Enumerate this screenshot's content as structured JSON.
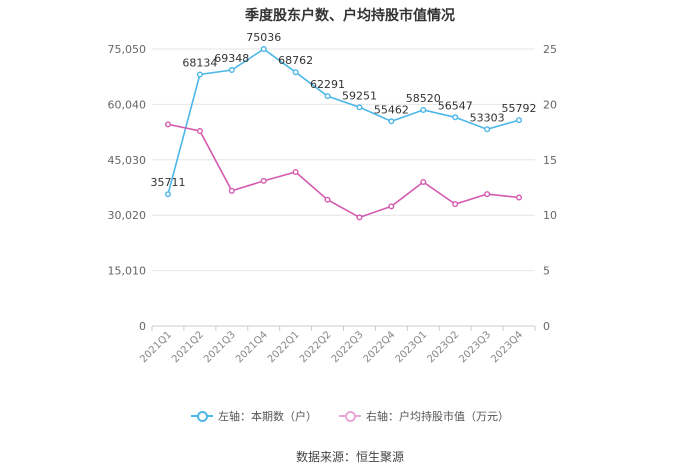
{
  "chart_data": {
    "type": "line",
    "title": "季度股东户数、户均持股市值情况",
    "categories": [
      "2021Q1",
      "2021Q2",
      "2021Q3",
      "2021Q4",
      "2022Q1",
      "2022Q2",
      "2022Q3",
      "2022Q4",
      "2023Q1",
      "2023Q2",
      "2023Q3",
      "2023Q4"
    ],
    "left_axis": {
      "ylim": [
        0,
        75050
      ],
      "ticks": [
        0,
        15010,
        30020,
        45030,
        60040,
        75050
      ],
      "tick_labels": [
        "0",
        "15,010",
        "30,020",
        "45,030",
        "60,040",
        "75,050"
      ]
    },
    "right_axis": {
      "ylim": [
        0,
        25
      ],
      "ticks": [
        0,
        5,
        10,
        15,
        20,
        25
      ],
      "tick_labels": [
        "0",
        "5",
        "10",
        "15",
        "20",
        "25"
      ]
    },
    "series": [
      {
        "name": "左轴：本期数（户）",
        "axis": "left",
        "color": "#4cb7e8",
        "values": [
          35711,
          68134,
          69348,
          75036,
          68762,
          62291,
          59251,
          55462,
          58520,
          56547,
          53303,
          55792
        ],
        "labels": [
          "35711",
          "68134",
          "69348",
          "75036",
          "68762",
          "62291",
          "59251",
          "55462",
          "58520",
          "56547",
          "53303",
          "55792"
        ]
      },
      {
        "name": "右轴：户均持股市值（万元）",
        "axis": "right",
        "color": "#d45ab0",
        "values": [
          18.2,
          17.6,
          12.2,
          13.1,
          13.9,
          11.4,
          9.8,
          10.8,
          13.0,
          11.0,
          11.9,
          11.6
        ]
      }
    ],
    "grid": true,
    "legend_position": "bottom"
  },
  "source_text": "数据来源：恒生聚源"
}
